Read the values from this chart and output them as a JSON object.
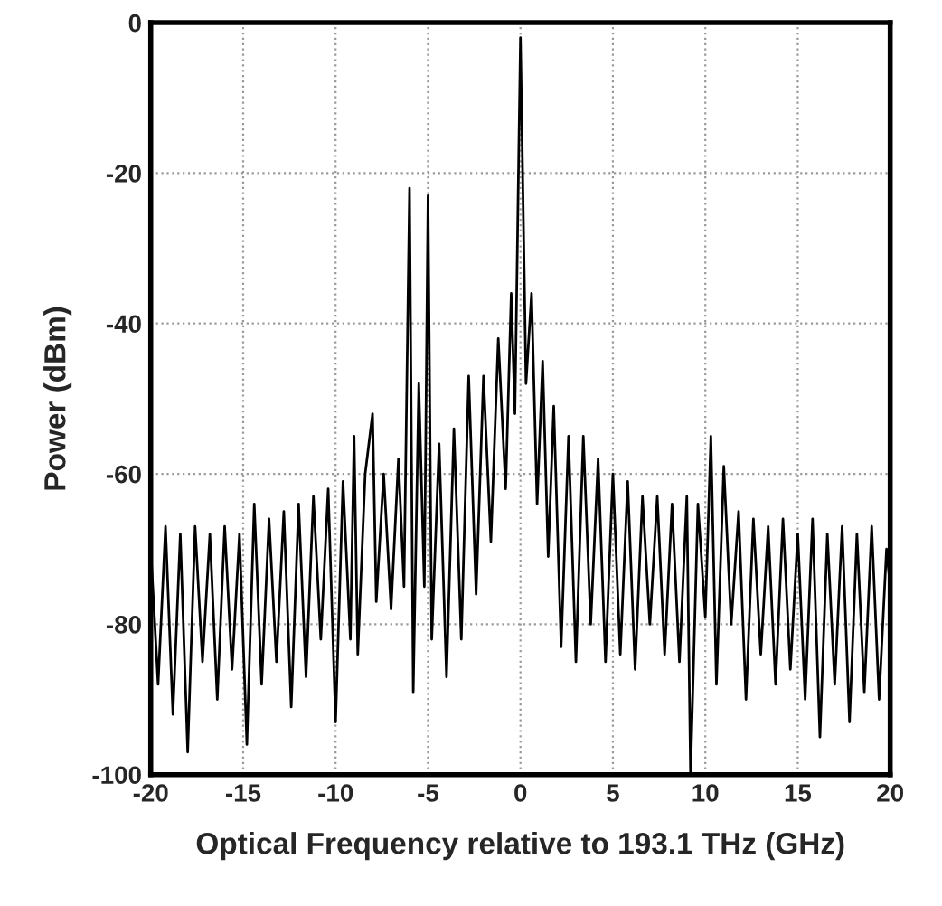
{
  "chart_data": {
    "type": "line",
    "xlabel": "Optical Frequency relative to 193.1 THz (GHz)",
    "ylabel": "Power (dBm)",
    "xlim": [
      -20,
      20
    ],
    "xticks": [
      -20,
      -15,
      -10,
      -5,
      0,
      5,
      10,
      15,
      20
    ],
    "ylim": [
      -100,
      0
    ],
    "yticks": [
      -100,
      -80,
      -60,
      -40,
      -20,
      0
    ],
    "grid": true,
    "legend": false,
    "series": [
      {
        "color": "#000000",
        "line_style": "solid",
        "marker": "none",
        "x": [
          -20,
          -19.6,
          -19.2,
          -18.8,
          -18.4,
          -18,
          -17.6,
          -17.2,
          -16.8,
          -16.4,
          -16,
          -15.6,
          -15.2,
          -14.8,
          -14.4,
          -14,
          -13.6,
          -13.2,
          -12.8,
          -12.4,
          -12,
          -11.6,
          -11.2,
          -10.8,
          -10.4,
          -10,
          -9.6,
          -9.2,
          -9.0,
          -8.8,
          -8.4,
          -8.0,
          -7.8,
          -7.4,
          -7,
          -6.6,
          -6.3,
          -6.0,
          -5.8,
          -5.5,
          -5.2,
          -5.0,
          -4.8,
          -4.4,
          -4.0,
          -3.6,
          -3.2,
          -2.8,
          -2.4,
          -2.0,
          -1.6,
          -1.2,
          -0.8,
          -0.5,
          -0.3,
          0,
          0.3,
          0.6,
          0.9,
          1.2,
          1.5,
          1.8,
          2.2,
          2.6,
          3.0,
          3.4,
          3.8,
          4.2,
          4.6,
          5.0,
          5.4,
          5.8,
          6.2,
          6.6,
          7.0,
          7.4,
          7.8,
          8.2,
          8.6,
          9.0,
          9.2,
          9.6,
          10.0,
          10.3,
          10.6,
          11.0,
          11.4,
          11.8,
          12.2,
          12.6,
          13.0,
          13.4,
          13.8,
          14.2,
          14.6,
          15.0,
          15.4,
          15.8,
          16.2,
          16.6,
          17.0,
          17.4,
          17.8,
          18.2,
          18.6,
          19.0,
          19.4,
          19.8,
          20
        ],
        "values": [
          -70,
          -88,
          -67,
          -92,
          -68,
          -97,
          -67,
          -85,
          -68,
          -90,
          -67,
          -86,
          -68,
          -96,
          -64,
          -88,
          -66,
          -85,
          -65,
          -91,
          -64,
          -87,
          -63,
          -82,
          -62,
          -93,
          -61,
          -82,
          -55,
          -84,
          -60,
          -52,
          -77,
          -60,
          -78,
          -58,
          -75,
          -22,
          -89,
          -48,
          -75,
          -23,
          -82,
          -56,
          -87,
          -54,
          -82,
          -47,
          -76,
          -47,
          -69,
          -42,
          -62,
          -36,
          -52,
          -2,
          -48,
          -36,
          -64,
          -45,
          -71,
          -51,
          -83,
          -55,
          -85,
          -55,
          -80,
          -58,
          -85,
          -60,
          -84,
          -61,
          -86,
          -63,
          -80,
          -63,
          -84,
          -64,
          -85,
          -63,
          -100,
          -64,
          -79,
          -55,
          -88,
          -59,
          -80,
          -65,
          -90,
          -66,
          -84,
          -67,
          -88,
          -66,
          -86,
          -68,
          -90,
          -66,
          -95,
          -68,
          -88,
          -67,
          -93,
          -68,
          -89,
          -67,
          -90,
          -70,
          -75
        ]
      }
    ]
  }
}
